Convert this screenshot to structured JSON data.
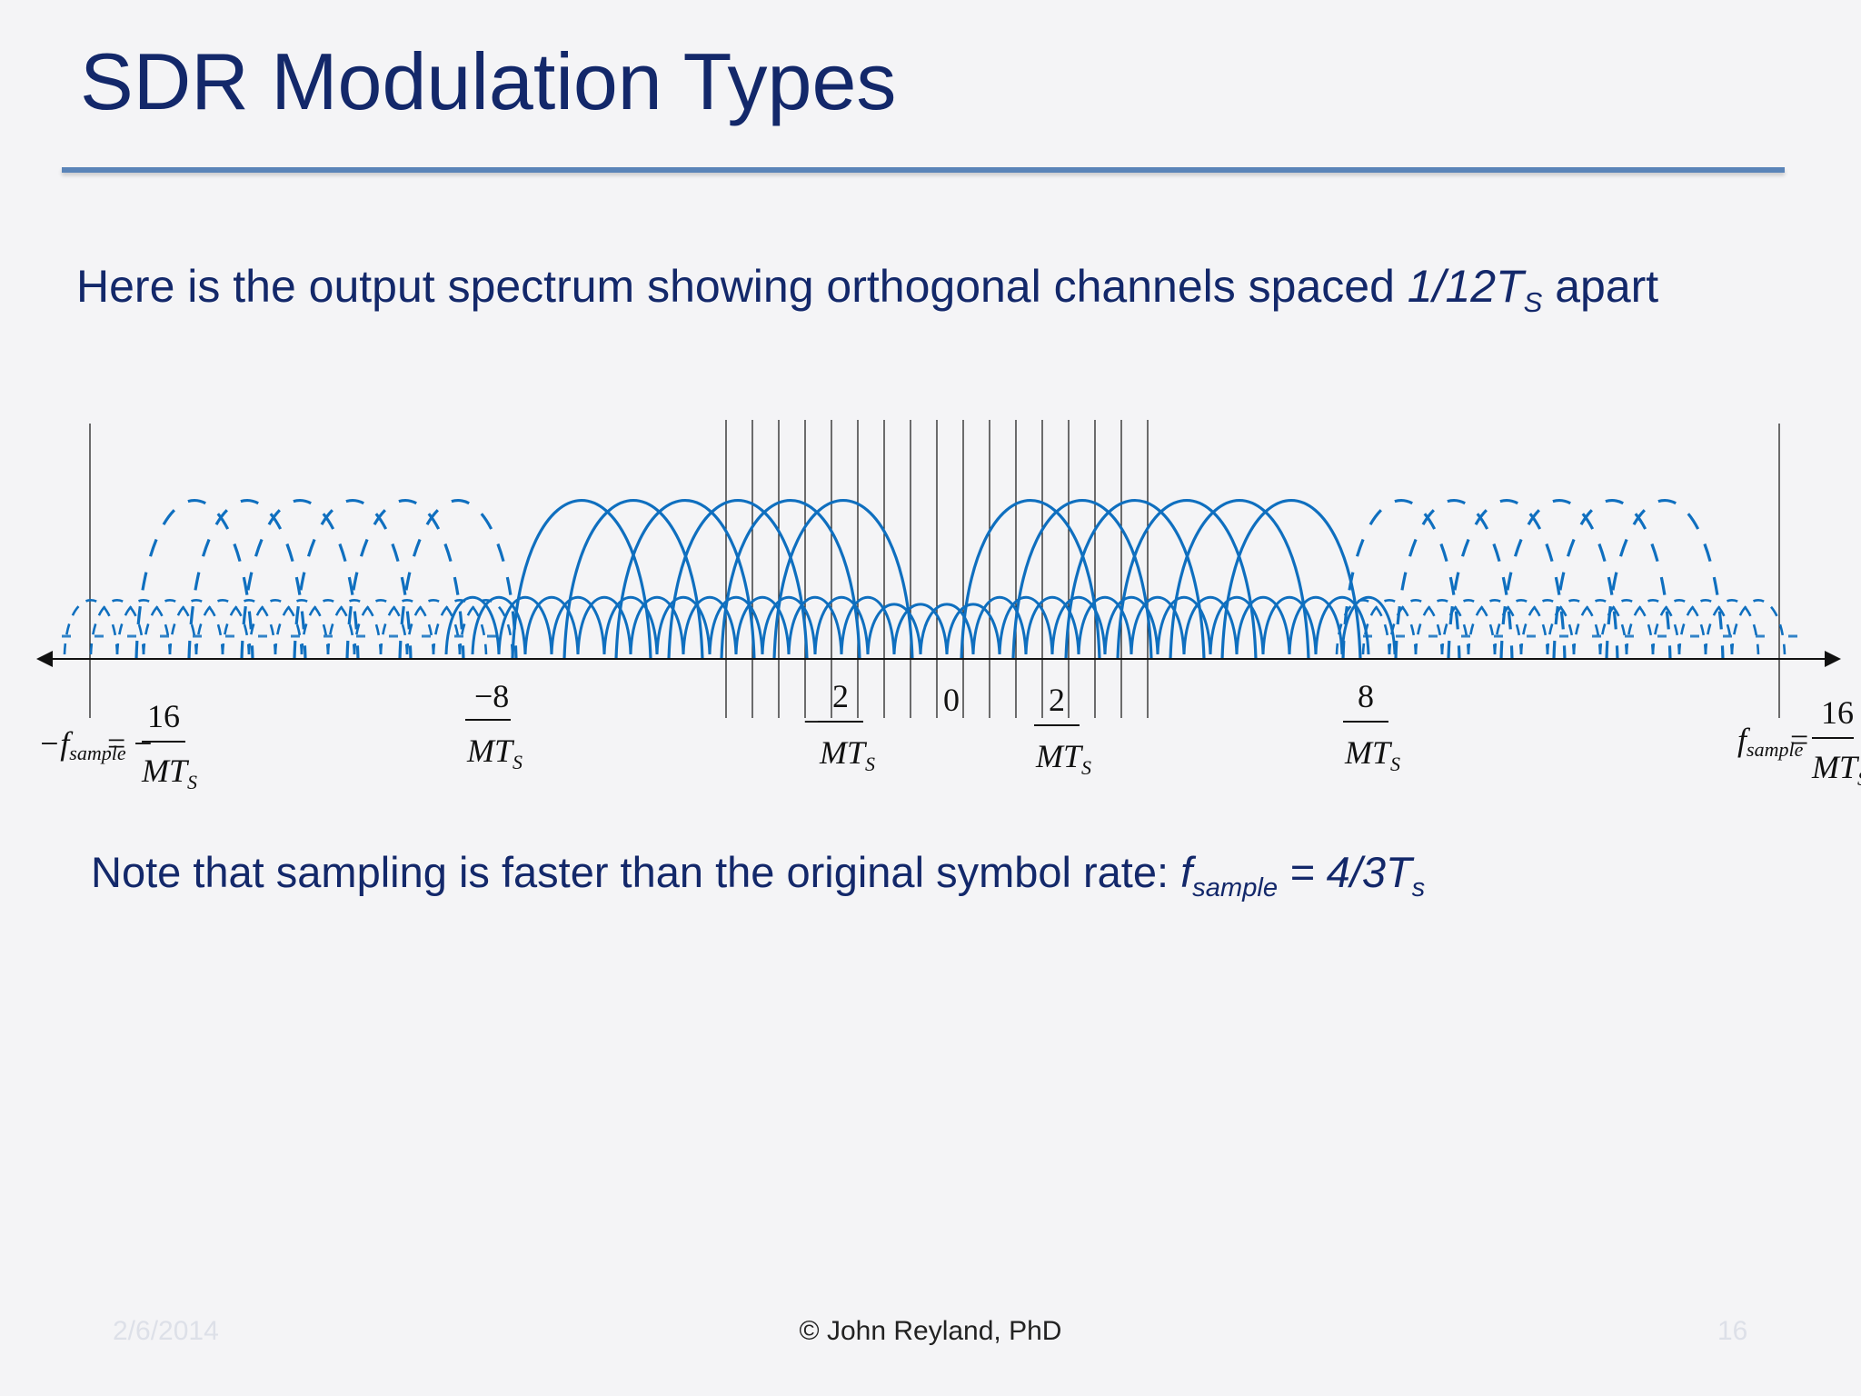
{
  "slide": {
    "title": "SDR Modulation Types",
    "intro": {
      "text": "Here is the output spectrum showing orthogonal channels spaced ",
      "spacing_main": "1/12T",
      "spacing_sub": "S",
      "suffix": " apart"
    },
    "note": {
      "text": "Note that sampling is faster than the original symbol rate:  ",
      "f": "f",
      "f_sub": "sample",
      "eq": " = 4/3T",
      "eq_sub": "s"
    },
    "footer": {
      "date": "2/6/2014",
      "author": "© John Reyland, PhD",
      "page": "16"
    }
  },
  "diagram": {
    "color": "#0f6fbf",
    "axis_labels": {
      "neg_fs": {
        "prefix": "−f",
        "prefix_sub": "sample",
        "eq": "= −",
        "num": "16",
        "den": "MT",
        "den_sub": "S"
      },
      "neg8": {
        "num": "−8",
        "den": "MT",
        "den_sub": "S"
      },
      "neg2": {
        "minus": "−",
        "num": "2",
        "den": "MT",
        "den_sub": "S"
      },
      "zero": {
        "num": "0"
      },
      "pos2": {
        "num": "2",
        "den": "MT",
        "den_sub": "S"
      },
      "pos8": {
        "num": "8",
        "den": "MT",
        "den_sub": "S"
      },
      "pos_fs": {
        "prefix": "f",
        "prefix_sub": "sample",
        "eq": "=",
        "num": "16",
        "den": "MT",
        "den_sub": "S"
      }
    }
  }
}
